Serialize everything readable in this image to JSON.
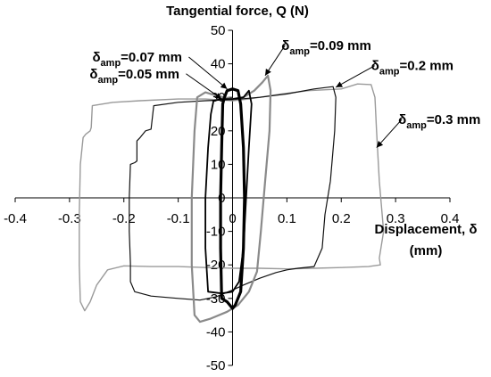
{
  "chart_data": {
    "type": "line",
    "ylabel": "Tangential force, Q (N)",
    "xlabel": "Displacement, δ",
    "xlabel_unit": "(mm)",
    "xlim": [
      -0.4,
      0.4
    ],
    "ylim": [
      -50,
      50
    ],
    "x_ticks": [
      -0.4,
      -0.3,
      -0.2,
      -0.1,
      0,
      0.1,
      0.2,
      0.3,
      0.4
    ],
    "y_ticks": [
      -50,
      -40,
      -30,
      -20,
      -10,
      0,
      10,
      20,
      30,
      40,
      50
    ],
    "x_tick_labels": [
      "-0.4",
      "-0.3",
      "-0.2",
      "-0.1",
      "0",
      "0.1",
      "0.2",
      "0.3",
      "0.4"
    ],
    "y_tick_labels": [
      "-50",
      "-40",
      "-30",
      "-20",
      "-10",
      "0",
      "10",
      "20",
      "30",
      "40",
      "50"
    ],
    "grid": false,
    "series": [
      {
        "name": "δamp=0.3 mm",
        "color": "#9a9a9a",
        "width": 1.4,
        "points": [
          [
            -0.272,
            -33.7
          ],
          [
            -0.28,
            -31
          ],
          [
            -0.282,
            -20
          ],
          [
            -0.282,
            -5
          ],
          [
            -0.28,
            10
          ],
          [
            -0.275,
            18
          ],
          [
            -0.27,
            19
          ],
          [
            -0.262,
            20
          ],
          [
            -0.26,
            21
          ],
          [
            -0.258,
            27.5
          ],
          [
            -0.22,
            28.5
          ],
          [
            -0.17,
            29
          ],
          [
            -0.1,
            29.5
          ],
          [
            -0.05,
            29.5
          ],
          [
            0,
            29
          ],
          [
            0.03,
            29.5
          ],
          [
            0.05,
            30
          ],
          [
            0.09,
            31
          ],
          [
            0.14,
            32
          ],
          [
            0.2,
            32.5
          ],
          [
            0.23,
            34
          ],
          [
            0.255,
            33.8
          ],
          [
            0.262,
            30
          ],
          [
            0.265,
            20
          ],
          [
            0.27,
            5
          ],
          [
            0.278,
            -10
          ],
          [
            0.27,
            -18
          ],
          [
            0.272,
            -20
          ],
          [
            0.25,
            -20.5
          ],
          [
            0.2,
            -20.8
          ],
          [
            0.15,
            -21
          ],
          [
            0.1,
            -21.2
          ],
          [
            0.05,
            -21
          ],
          [
            0,
            -21
          ],
          [
            -0.05,
            -20.8
          ],
          [
            -0.1,
            -20.5
          ],
          [
            -0.15,
            -20.5
          ],
          [
            -0.2,
            -20.3
          ],
          [
            -0.23,
            -21.5
          ],
          [
            -0.25,
            -26
          ],
          [
            -0.262,
            -31
          ],
          [
            -0.272,
            -33.7
          ]
        ]
      },
      {
        "name": "δamp=0.2 mm",
        "color": "#111111",
        "width": 1.2,
        "points": [
          [
            -0.188,
            -19.5
          ],
          [
            -0.19,
            -10
          ],
          [
            -0.19,
            0
          ],
          [
            -0.188,
            10
          ],
          [
            -0.18,
            10.5
          ],
          [
            -0.176,
            11
          ],
          [
            -0.176,
            17
          ],
          [
            -0.17,
            18
          ],
          [
            -0.16,
            20
          ],
          [
            -0.15,
            20.5
          ],
          [
            -0.145,
            27.5
          ],
          [
            -0.1,
            28.5
          ],
          [
            -0.05,
            29
          ],
          [
            0,
            29.3
          ],
          [
            0.05,
            30
          ],
          [
            0.1,
            31
          ],
          [
            0.15,
            32.5
          ],
          [
            0.185,
            33.2
          ],
          [
            0.19,
            30
          ],
          [
            0.188,
            20
          ],
          [
            0.18,
            5
          ],
          [
            0.17,
            -5
          ],
          [
            0.165,
            -15
          ],
          [
            0.15,
            -20.5
          ],
          [
            0.12,
            -21
          ],
          [
            0.1,
            -21.5
          ],
          [
            0.08,
            -22.3
          ],
          [
            0.05,
            -24
          ],
          [
            0.02,
            -26
          ],
          [
            0,
            -27.5
          ],
          [
            -0.03,
            -29.5
          ],
          [
            -0.06,
            -30.5
          ],
          [
            -0.1,
            -30
          ],
          [
            -0.15,
            -29.3
          ],
          [
            -0.18,
            -28
          ],
          [
            -0.188,
            -25
          ],
          [
            -0.188,
            -19.5
          ]
        ]
      },
      {
        "name": "δamp=0.09 mm",
        "color": "#8a8a8a",
        "width": 2.2,
        "points": [
          [
            -0.07,
            -35
          ],
          [
            -0.075,
            -20
          ],
          [
            -0.075,
            0
          ],
          [
            -0.07,
            20
          ],
          [
            -0.065,
            30
          ],
          [
            -0.05,
            31.5
          ],
          [
            -0.03,
            30.5
          ],
          [
            0,
            29.5
          ],
          [
            0.02,
            30
          ],
          [
            0.04,
            32
          ],
          [
            0.055,
            34.5
          ],
          [
            0.065,
            36.5
          ],
          [
            0.07,
            32
          ],
          [
            0.068,
            20
          ],
          [
            0.06,
            5
          ],
          [
            0.052,
            -10
          ],
          [
            0.045,
            -22
          ],
          [
            0.03,
            -28
          ],
          [
            0.01,
            -32
          ],
          [
            -0.01,
            -34
          ],
          [
            -0.04,
            -36
          ],
          [
            -0.06,
            -37
          ],
          [
            -0.07,
            -35
          ]
        ]
      },
      {
        "name": "δamp=0.07 mm",
        "color": "#000000",
        "width": 3.2,
        "points": [
          [
            -0.02,
            -30
          ],
          [
            -0.022,
            -15
          ],
          [
            -0.022,
            0
          ],
          [
            -0.02,
            15
          ],
          [
            -0.018,
            28
          ],
          [
            -0.015,
            30
          ],
          [
            -0.01,
            32
          ],
          [
            0,
            32.5
          ],
          [
            0.01,
            32
          ],
          [
            0.015,
            28
          ],
          [
            0.02,
            15
          ],
          [
            0.022,
            0
          ],
          [
            0.02,
            -15
          ],
          [
            0.015,
            -28
          ],
          [
            0.005,
            -32
          ],
          [
            0,
            -33
          ],
          [
            -0.01,
            -31
          ],
          [
            -0.02,
            -30
          ]
        ]
      },
      {
        "name": "δamp=0.05 mm",
        "color": "#000000",
        "width": 1.8,
        "points": [
          [
            -0.045,
            -28
          ],
          [
            -0.05,
            -15
          ],
          [
            -0.05,
            0
          ],
          [
            -0.045,
            15
          ],
          [
            -0.04,
            25
          ],
          [
            -0.035,
            29
          ],
          [
            -0.02,
            29.5
          ],
          [
            0,
            29.5
          ],
          [
            0.02,
            30
          ],
          [
            0.03,
            32
          ],
          [
            0.035,
            28
          ],
          [
            0.03,
            15
          ],
          [
            0.025,
            0
          ],
          [
            0.02,
            -15
          ],
          [
            0.012,
            -25
          ],
          [
            0,
            -28
          ],
          [
            -0.02,
            -28.5
          ],
          [
            -0.045,
            -28
          ]
        ]
      }
    ],
    "annotations": [
      {
        "delta": "δ",
        "sub": "amp",
        "value": "=0.07 mm",
        "anchor": [
          -0.258,
          40.7
        ],
        "arrow_to": [
          -0.01,
          32.5
        ]
      },
      {
        "delta": "δ",
        "sub": "amp",
        "value": "=0.05 mm",
        "anchor": [
          -0.263,
          35.7
        ],
        "arrow_to": [
          -0.02,
          29.5
        ]
      },
      {
        "delta": "δ",
        "sub": "amp",
        "value": "=0.09 mm",
        "anchor": [
          0.09,
          44.2
        ],
        "arrow_to": [
          0.06,
          36.5
        ]
      },
      {
        "delta": "δ",
        "sub": "amp",
        "value": "=0.2 mm",
        "anchor": [
          0.255,
          38.1
        ],
        "arrow_to": [
          0.19,
          33
        ]
      },
      {
        "delta": "δ",
        "sub": "amp",
        "value": "=0.3 mm",
        "anchor": [
          0.305,
          22.1
        ],
        "arrow_to": [
          0.265,
          15
        ]
      }
    ]
  }
}
